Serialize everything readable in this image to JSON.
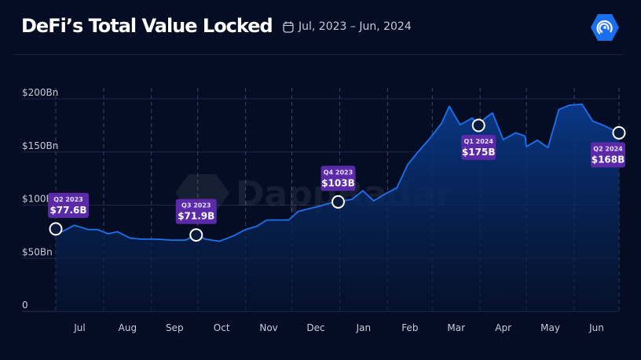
{
  "header": {
    "title": "DeFi’s Total Value Locked",
    "date_range": "Jul, 2023 – Jun, 2024",
    "calendar_icon": "calendar-icon",
    "logo_icon": "dappradar-logo-icon",
    "logo_color": "#1a6ff0"
  },
  "watermark": "DappRadar",
  "colors": {
    "line": "#1a72f0",
    "annotation": "#5a2aa8",
    "background": "#040d24"
  },
  "chart_data": {
    "type": "area",
    "title": "DeFi’s Total Value Locked",
    "xlabel": "",
    "ylabel": "",
    "ylim": [
      0,
      200
    ],
    "yticks": [
      {
        "v": 0,
        "label": "0"
      },
      {
        "v": 50,
        "label": "$50Bn"
      },
      {
        "v": 100,
        "label": "$100Bn"
      },
      {
        "v": 150,
        "label": "$150Bn"
      },
      {
        "v": 200,
        "label": "$200Bn"
      }
    ],
    "xlim": [
      "2023-07-01",
      "2024-06-30"
    ],
    "xticks": [
      "Jul",
      "Aug",
      "Sep",
      "Oct",
      "Nov",
      "Dec",
      "Jan",
      "Feb",
      "Mar",
      "Apr",
      "May",
      "Jun"
    ],
    "grid": {
      "horizontal": true,
      "vertical_dashed": true
    },
    "series": [
      {
        "x": [
          "2023-07-01",
          "2023-07-05",
          "2023-07-13",
          "2023-07-22",
          "2023-07-28",
          "2023-08-04",
          "2023-08-10",
          "2023-08-18",
          "2023-08-25",
          "2023-09-04",
          "2023-09-14",
          "2023-09-23",
          "2023-09-30",
          "2023-10-06",
          "2023-10-15",
          "2023-10-24",
          "2023-11-01",
          "2023-11-08",
          "2023-11-15",
          "2023-11-23",
          "2023-11-29",
          "2023-12-05",
          "2023-12-13",
          "2023-12-19",
          "2023-12-26",
          "2023-12-31",
          "2024-01-09",
          "2024-01-16",
          "2024-01-23",
          "2024-01-31",
          "2024-02-07",
          "2024-02-14",
          "2024-02-21",
          "2024-02-28",
          "2024-03-07",
          "2024-03-12",
          "2024-03-19",
          "2024-03-27",
          "2024-03-31",
          "2024-04-04",
          "2024-04-09",
          "2024-04-16",
          "2024-04-24",
          "2024-04-30",
          "2024-05-01",
          "2024-05-08",
          "2024-05-15",
          "2024-05-22",
          "2024-05-29",
          "2024-06-06",
          "2024-06-13",
          "2024-06-20",
          "2024-06-30"
        ],
        "y": [
          77.6,
          75,
          81,
          77,
          77,
          73,
          75,
          69,
          68,
          68,
          67,
          67,
          71.9,
          68,
          66,
          71,
          77,
          80,
          86,
          86,
          86,
          94,
          97,
          99,
          102,
          103,
          105.5,
          113.6,
          104,
          111,
          116,
          138,
          150.5,
          162,
          177,
          193,
          175.6,
          182,
          175,
          181.5,
          186.7,
          161.6,
          168,
          165,
          155,
          161,
          154,
          190,
          194,
          195,
          179,
          175,
          168
        ]
      }
    ],
    "annotations": [
      {
        "x": "2023-07-01",
        "label": "Q2 2023",
        "value_label": "$77.6B",
        "position": "above"
      },
      {
        "x": "2023-09-30",
        "label": "Q3 2023",
        "value_label": "$71.9B",
        "position": "above"
      },
      {
        "x": "2023-12-31",
        "label": "Q4 2023",
        "value_label": "$103B",
        "position": "above"
      },
      {
        "x": "2024-03-31",
        "label": "Q1 2024",
        "value_label": "$175B",
        "position": "below"
      },
      {
        "x": "2024-06-30",
        "label": "Q2 2024",
        "value_label": "$168B",
        "position": "below"
      }
    ]
  }
}
